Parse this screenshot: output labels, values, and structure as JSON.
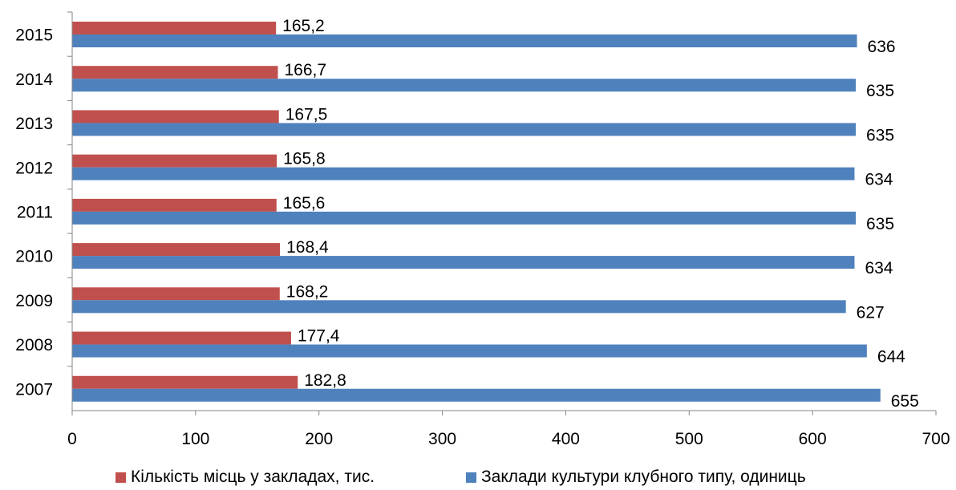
{
  "chart_data": {
    "type": "bar",
    "orientation": "horizontal",
    "categories": [
      "2007",
      "2008",
      "2009",
      "2010",
      "2011",
      "2012",
      "2013",
      "2014",
      "2015"
    ],
    "series": [
      {
        "name": "Кількість місць у закладах, тис.",
        "color": "#C0504D",
        "values": [
          182.8,
          177.4,
          168.2,
          168.4,
          165.6,
          165.8,
          167.5,
          166.7,
          165.2
        ],
        "labels": [
          "182,8",
          "177,4",
          "168,2",
          "168,4",
          "165,6",
          "165,8",
          "167,5",
          "166,7",
          "165,2"
        ]
      },
      {
        "name": "Заклади культури клубного типу, одиниць",
        "color": "#4F81BD",
        "values": [
          655,
          644,
          627,
          634,
          635,
          634,
          635,
          635,
          636
        ],
        "labels": [
          "655",
          "644",
          "627",
          "634",
          "635",
          "634",
          "635",
          "635",
          "636"
        ]
      }
    ],
    "xlim": [
      0,
      700
    ],
    "xticks": [
      0,
      100,
      200,
      300,
      400,
      500,
      600,
      700
    ],
    "xtick_labels": [
      "0",
      "100",
      "200",
      "300",
      "400",
      "500",
      "600",
      "700"
    ],
    "grid": false,
    "legend_position": "bottom"
  }
}
